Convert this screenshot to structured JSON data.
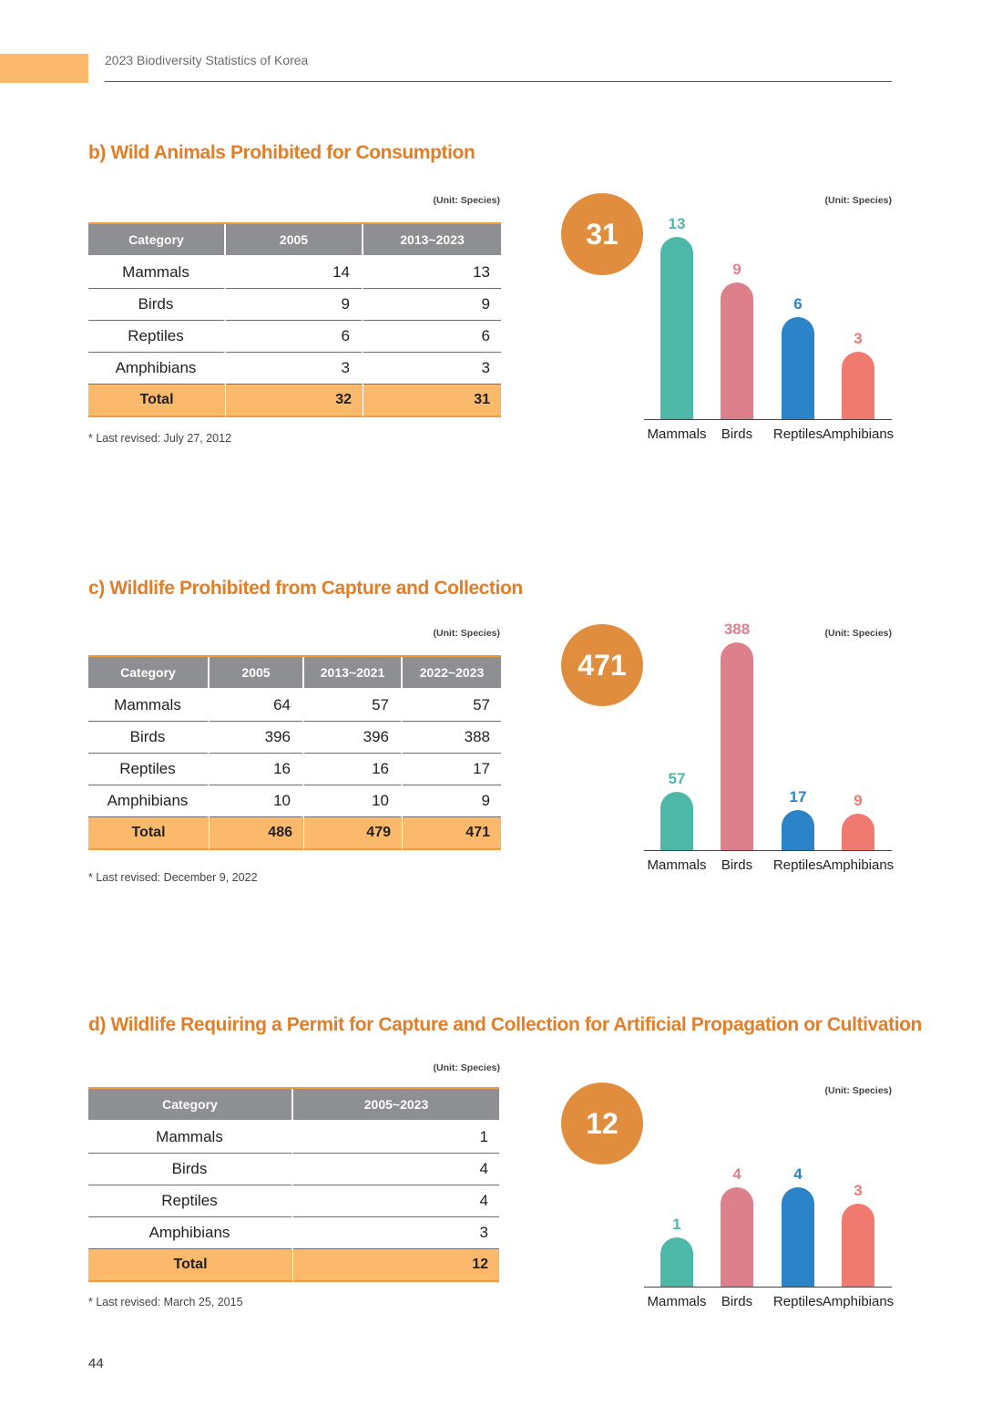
{
  "header": {
    "title": "2023 Biodiversity Statistics of Korea"
  },
  "page_number": "44",
  "colors": {
    "accent": "#e07f2a",
    "header_tab": "#fbb96b",
    "table_header": "#8d8f92",
    "total_row": "#fbb96b",
    "total_circle": "#e08e3e",
    "mammals": "#4db8a8",
    "birds": "#de7f8c",
    "reptiles": "#2b83c8",
    "amphibians": "#f07a70"
  },
  "sections": [
    {
      "title": "b) Wild Animals Prohibited for Consumption",
      "unit": "(Unit: Species)",
      "note": "* Last revised: July 27, 2012",
      "table": {
        "headers": [
          "Category",
          "2005",
          "2013~2023"
        ],
        "rows": [
          [
            "Mammals",
            "14",
            "13"
          ],
          [
            "Birds",
            "9",
            "9"
          ],
          [
            "Reptiles",
            "6",
            "6"
          ],
          [
            "Amphibians",
            "3",
            "3"
          ]
        ],
        "total": [
          "Total",
          "32",
          "31"
        ]
      }
    },
    {
      "title": "c) Wildlife Prohibited from Capture and Collection",
      "unit": "(Unit: Species)",
      "note": "* Last revised: December 9, 2022",
      "table": {
        "headers": [
          "Category",
          "2005",
          "2013~2021",
          "2022~2023"
        ],
        "rows": [
          [
            "Mammals",
            "64",
            "57",
            "57"
          ],
          [
            "Birds",
            "396",
            "396",
            "388"
          ],
          [
            "Reptiles",
            "16",
            "16",
            "17"
          ],
          [
            "Amphibians",
            "10",
            "10",
            "9"
          ]
        ],
        "total": [
          "Total",
          "486",
          "479",
          "471"
        ]
      }
    },
    {
      "title": "d) Wildlife Requiring a Permit for Capture and Collection for Artificial Propagation or Cultivation",
      "unit": "(Unit: Species)",
      "note": "* Last revised: March 25, 2015",
      "table": {
        "headers": [
          "Category",
          "2005~2023"
        ],
        "rows": [
          [
            "Mammals",
            "1"
          ],
          [
            "Birds",
            "4"
          ],
          [
            "Reptiles",
            "4"
          ],
          [
            "Amphibians",
            "3"
          ]
        ],
        "total": [
          "Total",
          "12"
        ]
      }
    }
  ],
  "chart_data": [
    {
      "type": "bar",
      "unit": "(Unit: Species)",
      "total": "31",
      "categories": [
        "Mammals",
        "Birds",
        "Reptiles",
        "Amphibians"
      ],
      "values": [
        13,
        9,
        6,
        3
      ],
      "colors": [
        "#4db8a8",
        "#de7f8c",
        "#2b83c8",
        "#f07a70"
      ],
      "grid": false
    },
    {
      "type": "bar",
      "unit": "(Unit: Species)",
      "total": "471",
      "categories": [
        "Mammals",
        "Birds",
        "Reptiles",
        "Amphibians"
      ],
      "values": [
        57,
        388,
        17,
        9
      ],
      "colors": [
        "#4db8a8",
        "#de7f8c",
        "#2b83c8",
        "#f07a70"
      ],
      "grid": false
    },
    {
      "type": "bar",
      "unit": "(Unit: Species)",
      "total": "12",
      "categories": [
        "Mammals",
        "Birds",
        "Reptiles",
        "Amphibians"
      ],
      "values": [
        1,
        4,
        4,
        3
      ],
      "colors": [
        "#4db8a8",
        "#de7f8c",
        "#2b83c8",
        "#f07a70"
      ],
      "grid": false
    }
  ]
}
